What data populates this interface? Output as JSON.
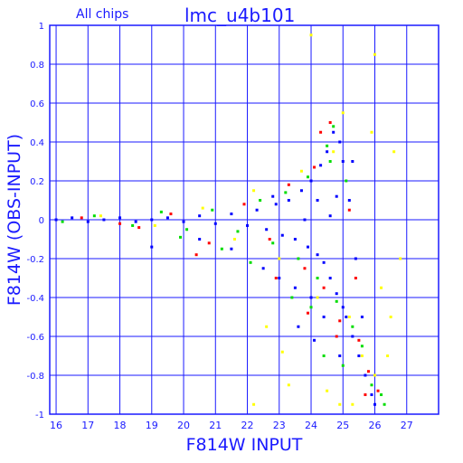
{
  "header": {
    "subset_label": "All chips",
    "field_title": "lmc_u4b101"
  },
  "colors": {
    "axis": "#1a1aff",
    "grid": "#1a1aff",
    "text": "#1a1aff",
    "series_blue": "#0000ff",
    "series_green": "#00dd00",
    "series_red": "#ff0000",
    "series_yellow": "#ffff00"
  },
  "chart_data": {
    "type": "scatter",
    "title": "lmc_u4b101",
    "subtitle": "All chips",
    "xlabel": "F814W INPUT",
    "ylabel": "F814W (OBS-INPUT)",
    "xlim": [
      15.8,
      28.0
    ],
    "ylim": [
      -1.0,
      1.0
    ],
    "xticks": [
      "16",
      "17",
      "18",
      "19",
      "20",
      "21",
      "22",
      "23",
      "24",
      "25",
      "26",
      "27"
    ],
    "yticks": [
      "-1",
      "-0.8",
      "-0.6",
      "-0.4",
      "-0.2",
      "0",
      "0.2",
      "0.4",
      "0.6",
      "0.8",
      "1"
    ],
    "grid": true,
    "legend": "none",
    "series": [
      {
        "color": "blue",
        "points": [
          [
            16.0,
            0.0
          ],
          [
            16.5,
            0.01
          ],
          [
            17.0,
            -0.01
          ],
          [
            17.5,
            0.0
          ],
          [
            18.0,
            0.01
          ],
          [
            18.5,
            -0.01
          ],
          [
            19.0,
            0.0
          ],
          [
            19.5,
            0.01
          ],
          [
            20.0,
            -0.01
          ],
          [
            20.5,
            0.02
          ],
          [
            21.0,
            -0.02
          ],
          [
            21.5,
            0.03
          ],
          [
            22.0,
            -0.03
          ],
          [
            22.3,
            0.05
          ],
          [
            22.6,
            -0.05
          ],
          [
            22.9,
            0.08
          ],
          [
            23.1,
            -0.08
          ],
          [
            23.3,
            0.1
          ],
          [
            23.5,
            -0.1
          ],
          [
            23.7,
            0.15
          ],
          [
            23.9,
            -0.14
          ],
          [
            24.0,
            0.2
          ],
          [
            24.2,
            -0.18
          ],
          [
            24.3,
            0.28
          ],
          [
            24.4,
            -0.22
          ],
          [
            24.5,
            0.35
          ],
          [
            24.6,
            -0.3
          ],
          [
            24.7,
            0.45
          ],
          [
            24.8,
            -0.38
          ],
          [
            24.9,
            0.4
          ],
          [
            25.0,
            -0.45
          ],
          [
            25.0,
            0.3
          ],
          [
            25.1,
            -0.5
          ],
          [
            25.2,
            0.1
          ],
          [
            25.3,
            -0.6
          ],
          [
            25.4,
            -0.2
          ],
          [
            25.5,
            -0.7
          ],
          [
            25.6,
            -0.5
          ],
          [
            25.7,
            -0.8
          ],
          [
            25.9,
            -0.9
          ],
          [
            26.0,
            -0.95
          ],
          [
            23.0,
            -0.3
          ],
          [
            23.5,
            -0.35
          ],
          [
            24.0,
            -0.4
          ],
          [
            22.5,
            -0.25
          ],
          [
            21.5,
            -0.15
          ],
          [
            20.5,
            -0.1
          ],
          [
            19.0,
            -0.14
          ],
          [
            24.2,
            0.1
          ],
          [
            23.8,
            0.0
          ],
          [
            24.6,
            0.02
          ],
          [
            22.8,
            0.12
          ],
          [
            24.4,
            -0.5
          ],
          [
            24.1,
            -0.62
          ],
          [
            23.6,
            -0.55
          ],
          [
            24.8,
            0.12
          ],
          [
            25.3,
            0.3
          ],
          [
            24.9,
            -0.7
          ]
        ]
      },
      {
        "color": "green",
        "points": [
          [
            16.2,
            -0.01
          ],
          [
            17.2,
            0.02
          ],
          [
            18.4,
            -0.03
          ],
          [
            19.3,
            0.04
          ],
          [
            20.1,
            -0.05
          ],
          [
            20.9,
            0.05
          ],
          [
            21.7,
            -0.06
          ],
          [
            22.4,
            0.1
          ],
          [
            22.8,
            -0.12
          ],
          [
            23.2,
            0.14
          ],
          [
            23.6,
            -0.2
          ],
          [
            23.9,
            0.22
          ],
          [
            24.2,
            -0.3
          ],
          [
            24.5,
            0.38
          ],
          [
            24.8,
            -0.42
          ],
          [
            25.1,
            0.2
          ],
          [
            25.3,
            -0.55
          ],
          [
            25.6,
            -0.65
          ],
          [
            25.9,
            -0.85
          ],
          [
            26.2,
            -0.9
          ],
          [
            24.0,
            -0.45
          ],
          [
            23.4,
            -0.4
          ],
          [
            21.2,
            -0.15
          ],
          [
            24.6,
            0.3
          ],
          [
            25.0,
            -0.75
          ],
          [
            24.4,
            -0.7
          ],
          [
            19.9,
            -0.09
          ],
          [
            22.1,
            -0.22
          ],
          [
            24.7,
            0.48
          ],
          [
            26.3,
            -0.95
          ]
        ]
      },
      {
        "color": "red",
        "points": [
          [
            16.8,
            0.01
          ],
          [
            18.0,
            -0.02
          ],
          [
            19.6,
            0.03
          ],
          [
            20.8,
            -0.12
          ],
          [
            21.9,
            0.08
          ],
          [
            22.7,
            -0.1
          ],
          [
            23.3,
            0.18
          ],
          [
            23.8,
            -0.25
          ],
          [
            24.1,
            0.27
          ],
          [
            24.4,
            -0.35
          ],
          [
            24.6,
            0.5
          ],
          [
            24.9,
            -0.52
          ],
          [
            25.2,
            0.05
          ],
          [
            25.5,
            -0.62
          ],
          [
            25.8,
            -0.78
          ],
          [
            26.1,
            -0.88
          ],
          [
            23.9,
            -0.48
          ],
          [
            22.9,
            -0.3
          ],
          [
            24.3,
            0.45
          ],
          [
            25.4,
            -0.3
          ],
          [
            20.4,
            -0.18
          ],
          [
            18.6,
            -0.04
          ],
          [
            24.8,
            -0.6
          ],
          [
            25.7,
            -0.9
          ]
        ]
      },
      {
        "color": "yellow",
        "points": [
          [
            17.4,
            0.02
          ],
          [
            19.1,
            -0.03
          ],
          [
            20.6,
            0.06
          ],
          [
            21.6,
            -0.1
          ],
          [
            22.2,
            0.15
          ],
          [
            23.0,
            -0.2
          ],
          [
            23.7,
            0.25
          ],
          [
            24.2,
            -0.4
          ],
          [
            24.7,
            0.35
          ],
          [
            25.0,
            0.55
          ],
          [
            25.2,
            -0.5
          ],
          [
            25.6,
            -0.7
          ],
          [
            26.0,
            -0.8
          ],
          [
            26.5,
            -0.5
          ],
          [
            26.6,
            0.35
          ],
          [
            26.0,
            0.85
          ],
          [
            24.0,
            0.95
          ],
          [
            23.3,
            -0.85
          ],
          [
            22.2,
            -0.95
          ],
          [
            24.5,
            -0.88
          ],
          [
            25.3,
            -0.95
          ],
          [
            26.4,
            -0.7
          ],
          [
            22.6,
            -0.55
          ],
          [
            23.1,
            -0.68
          ],
          [
            26.8,
            -0.2
          ],
          [
            25.9,
            0.45
          ],
          [
            24.9,
            -0.95
          ],
          [
            26.2,
            -0.35
          ]
        ]
      }
    ]
  }
}
